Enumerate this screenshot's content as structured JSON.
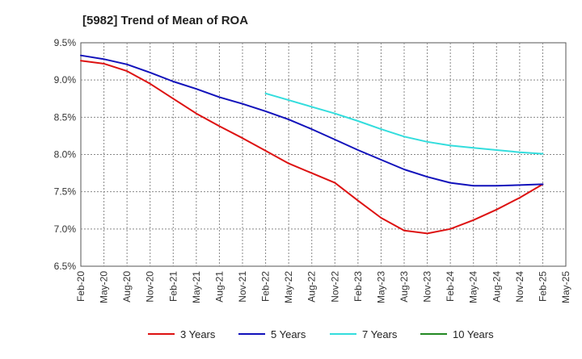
{
  "chart_data": {
    "type": "line",
    "title": "[5982]  Trend of Mean of ROA",
    "xlabel": "",
    "ylabel": "",
    "ylim": [
      6.5,
      9.5
    ],
    "yticks": [
      6.5,
      7.0,
      7.5,
      8.0,
      8.5,
      9.0,
      9.5
    ],
    "ytick_labels": [
      "6.5%",
      "7.0%",
      "7.5%",
      "8.0%",
      "8.5%",
      "9.0%",
      "9.5%"
    ],
    "categories": [
      "Feb-20",
      "May-20",
      "Aug-20",
      "Nov-20",
      "Feb-21",
      "May-21",
      "Aug-21",
      "Nov-21",
      "Feb-22",
      "May-22",
      "Aug-22",
      "Nov-22",
      "Feb-23",
      "May-23",
      "Aug-23",
      "Nov-23",
      "Feb-24",
      "May-24",
      "Aug-24",
      "Nov-24",
      "Feb-25",
      "May-25"
    ],
    "grid": true,
    "legend_position": "bottom",
    "series": [
      {
        "name": "3 Years",
        "color": "#dd1111",
        "values": [
          9.26,
          9.22,
          9.12,
          8.95,
          8.75,
          8.55,
          8.38,
          8.22,
          8.05,
          7.88,
          7.75,
          7.62,
          7.38,
          7.15,
          6.98,
          6.94,
          7.0,
          7.12,
          7.26,
          7.42,
          7.6,
          null
        ]
      },
      {
        "name": "5 Years",
        "color": "#1111bb",
        "values": [
          9.33,
          9.28,
          9.21,
          9.1,
          8.98,
          8.88,
          8.77,
          8.68,
          8.58,
          8.47,
          8.34,
          8.2,
          8.06,
          7.93,
          7.8,
          7.7,
          7.62,
          7.58,
          7.58,
          7.59,
          7.6,
          null
        ]
      },
      {
        "name": "7 Years",
        "color": "#33dddd",
        "values": [
          null,
          null,
          null,
          null,
          null,
          null,
          null,
          null,
          8.82,
          8.73,
          8.64,
          8.55,
          8.45,
          8.34,
          8.24,
          8.17,
          8.12,
          8.09,
          8.06,
          8.03,
          8.01,
          null
        ]
      },
      {
        "name": "10 Years",
        "color": "#228822",
        "values": [
          null,
          null,
          null,
          null,
          null,
          null,
          null,
          null,
          null,
          null,
          null,
          null,
          null,
          null,
          null,
          null,
          null,
          null,
          null,
          null,
          null,
          null
        ]
      }
    ]
  }
}
